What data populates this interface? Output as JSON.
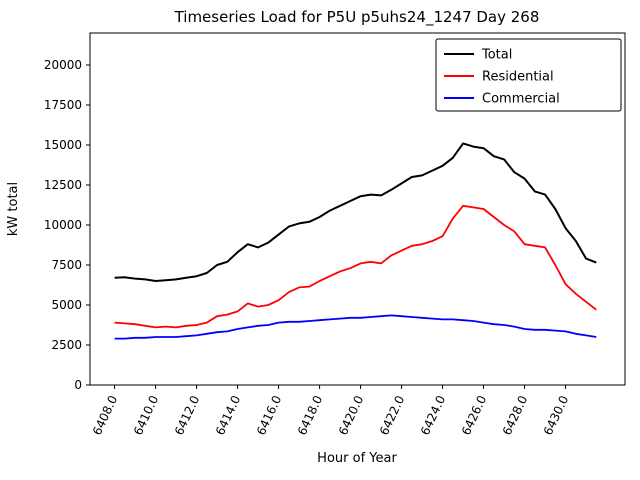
{
  "chart_data": {
    "type": "line",
    "title": "Timeseries Load for P5U p5uhs24_1247  Day 268",
    "xlabel": "Hour of Year",
    "ylabel": "kW total",
    "xlim": [
      6406.8,
      6432.9
    ],
    "ylim": [
      0,
      22000
    ],
    "x_ticks": [
      6408,
      6410,
      6412,
      6414,
      6416,
      6418,
      6420,
      6422,
      6424,
      6426,
      6428,
      6430
    ],
    "x_tick_labels": [
      "6408.0",
      "6410.0",
      "6412.0",
      "6414.0",
      "6416.0",
      "6418.0",
      "6420.0",
      "6422.0",
      "6424.0",
      "6426.0",
      "6428.0",
      "6430.0"
    ],
    "y_ticks": [
      0,
      2500,
      5000,
      7500,
      10000,
      12500,
      15000,
      17500,
      20000
    ],
    "grid": false,
    "legend_position": "upper right",
    "x": [
      6408,
      6408.5,
      6409,
      6409.5,
      6410,
      6410.5,
      6411,
      6411.5,
      6412,
      6412.5,
      6413,
      6413.5,
      6414,
      6414.5,
      6415,
      6415.5,
      6416,
      6416.5,
      6417,
      6417.5,
      6418,
      6418.5,
      6419,
      6419.5,
      6420,
      6420.5,
      6421,
      6421.5,
      6422,
      6422.5,
      6423,
      6423.5,
      6424,
      6424.5,
      6425,
      6425.5,
      6426,
      6426.5,
      6427,
      6427.5,
      6428,
      6428.5,
      6429,
      6429.5,
      6430,
      6430.5,
      6431,
      6431.5
    ],
    "series": [
      {
        "name": "Total",
        "color": "#000000",
        "values": [
          6700,
          6730,
          6650,
          6600,
          6500,
          6550,
          6600,
          6700,
          6800,
          7000,
          7500,
          7700,
          8300,
          8800,
          8600,
          8900,
          9400,
          9900,
          10100,
          10200,
          10500,
          10900,
          11200,
          11500,
          11800,
          11900,
          11850,
          12200,
          12600,
          13000,
          13100,
          13400,
          13700,
          14200,
          15100,
          14900,
          14800,
          14300,
          14100,
          13300,
          12900,
          12100,
          11900,
          11000,
          9800,
          9000,
          7900,
          7650
        ]
      },
      {
        "name": "Residential",
        "color": "#ff0000",
        "values": [
          3900,
          3850,
          3800,
          3700,
          3600,
          3650,
          3600,
          3700,
          3750,
          3900,
          4300,
          4400,
          4600,
          5100,
          4900,
          5000,
          5300,
          5800,
          6100,
          6150,
          6500,
          6800,
          7100,
          7300,
          7600,
          7700,
          7600,
          8100,
          8400,
          8700,
          8800,
          9000,
          9300,
          10400,
          11200,
          11100,
          11000,
          10500,
          10000,
          9600,
          8800,
          8700,
          8600,
          7500,
          6300,
          5700,
          5200,
          4700
        ]
      },
      {
        "name": "Commercial",
        "color": "#0000ff",
        "values": [
          2900,
          2900,
          2950,
          2950,
          3000,
          3000,
          3000,
          3050,
          3100,
          3200,
          3300,
          3350,
          3500,
          3600,
          3700,
          3750,
          3900,
          3950,
          3950,
          4000,
          4050,
          4100,
          4150,
          4200,
          4200,
          4250,
          4300,
          4350,
          4300,
          4250,
          4200,
          4150,
          4100,
          4100,
          4050,
          4000,
          3900,
          3800,
          3750,
          3650,
          3500,
          3450,
          3450,
          3400,
          3350,
          3200,
          3100,
          3000
        ]
      }
    ]
  }
}
